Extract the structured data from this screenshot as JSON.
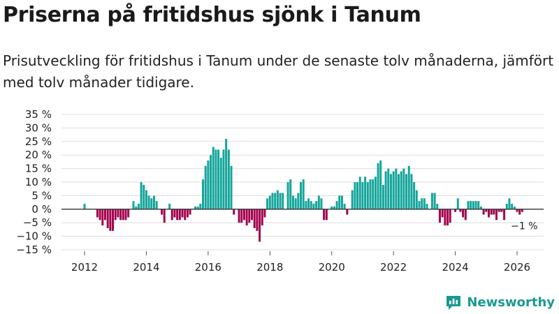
{
  "title": "Priserna på fritidshus sjönk i Tanum",
  "subtitle": "Prisutveckling för fritidshus i Tanum under de senaste tolv månaderna, jämfört med tolv månader tidigare.",
  "brand": "Newsworthy",
  "colors": {
    "positive": "#14a59b",
    "negative": "#a3004e",
    "grid": "#dddddd",
    "axis": "#333333",
    "brand": "#1a9a8f"
  },
  "chart_data": {
    "type": "bar",
    "title": "Priserna på fritidshus sjönk i Tanum",
    "ylabel": "",
    "xlabel": "",
    "ylim": [
      -15,
      35
    ],
    "yticks": [
      35,
      30,
      25,
      20,
      15,
      10,
      5,
      0,
      -5,
      -10,
      -15
    ],
    "ytick_labels": [
      "35 %",
      "30 %",
      "25 %",
      "20 %",
      "15 %",
      "10 %",
      "5 %",
      "0 %",
      "−5 %",
      "−10 %",
      "−15 %"
    ],
    "xticks": [
      2012,
      2014,
      2016,
      2018,
      2020,
      2022,
      2024,
      2026
    ],
    "start": [
      2011,
      1
    ],
    "last_label": "−1 %",
    "values": [
      null,
      null,
      null,
      null,
      null,
      null,
      null,
      null,
      null,
      null,
      null,
      null,
      2,
      null,
      null,
      null,
      null,
      -3,
      -4,
      -6,
      -4,
      -7,
      -8,
      -8,
      -4,
      -3,
      -4,
      -4,
      -4,
      -3,
      null,
      3,
      1,
      2,
      10,
      9,
      7,
      5,
      4,
      5,
      3,
      null,
      -2,
      -5,
      0,
      2,
      -4,
      -3,
      -4,
      -4,
      -3,
      -4,
      -3,
      -2,
      0,
      1,
      1,
      2,
      11,
      16,
      18,
      20,
      23,
      22,
      22,
      19,
      22,
      26,
      22,
      16,
      -2,
      null,
      -5,
      -5,
      -4,
      -6,
      -5,
      -4,
      -7,
      -8,
      -12,
      -6,
      -3,
      4,
      5,
      6,
      6,
      7,
      6,
      6,
      null,
      10,
      11,
      5,
      4,
      6,
      10,
      11,
      3,
      4,
      3,
      2,
      3,
      5,
      4,
      -4,
      -4,
      null,
      1,
      1,
      3,
      5,
      5,
      2,
      -2,
      null,
      7,
      10,
      10,
      12,
      10,
      12,
      10,
      11,
      11,
      12,
      17,
      18,
      9,
      14,
      15,
      13,
      14,
      15,
      13,
      14,
      15,
      13,
      16,
      13,
      10,
      7,
      3,
      4,
      4,
      2,
      null,
      6,
      6,
      2,
      -5,
      -3,
      -6,
      -6,
      -5,
      null,
      -1,
      4,
      -1,
      -3,
      -4,
      3,
      3,
      3,
      3,
      3,
      1,
      -2,
      -1,
      -3,
      -2,
      -2,
      -4,
      -1,
      -1,
      -4,
      2,
      4,
      2,
      1,
      -1,
      -2,
      -1
    ]
  }
}
